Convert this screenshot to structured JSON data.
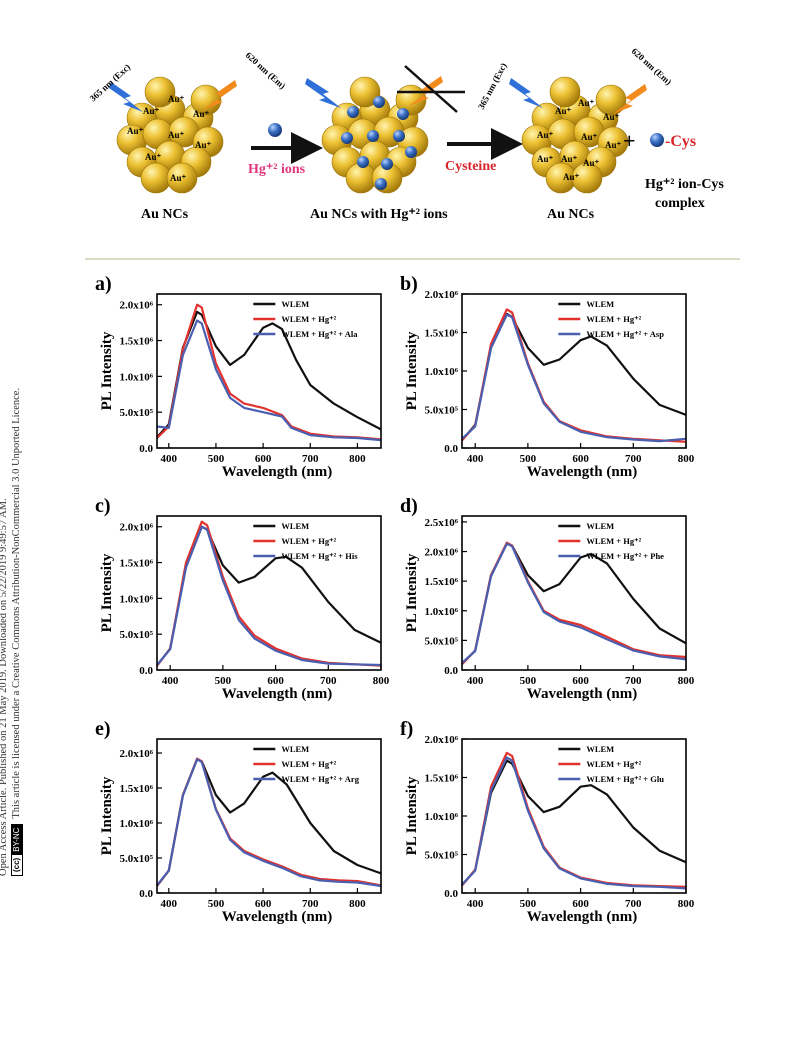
{
  "side_notice": {
    "line1": "Open Access Article. Published on 21 May 2019. Downloaded on 5/22/2019 9:49:57 AM.",
    "badge_cc": "(cc)",
    "badge_by": "BY-NC",
    "line2": "This article is licensed under a Creative Commons Attribution-NonCommercial 3.0 Unported Licence."
  },
  "scheme": {
    "exc_label": "365 nm (Exc)",
    "em_label": "620 nm (Em)",
    "au_plus": "Au⁺",
    "cluster1_label": "Au NCs",
    "hg_ions_label": "Hg⁺² ions",
    "cluster2_label": "Au NCs with Hg⁺² ions",
    "cysteine_label": "Cysteine",
    "cluster3_label": "Au NCs",
    "plus": "+",
    "cys_label": "-Cys",
    "complex_label_1": "Hg⁺² ion-Cys",
    "complex_label_2": "complex",
    "colors": {
      "gold": "#e7b622",
      "gold_dark": "#b0840e",
      "blue_bolt": "#2f6fd8",
      "orange_bolt": "#f28a1c",
      "hg_ball": "#2f5fa8",
      "pink": "#e0377e",
      "red_text": "#d8252a"
    }
  },
  "chart_data": [
    {
      "panel": "a)",
      "type": "line",
      "xlabel": "Wavelength (nm)",
      "ylabel": "PL Intensity",
      "xlim": [
        375,
        850
      ],
      "ylim": [
        0,
        2150000
      ],
      "xticks": [
        400,
        500,
        600,
        700,
        800
      ],
      "yticks": [
        0,
        500000,
        1000000,
        1500000,
        2000000
      ],
      "ytick_labels": [
        "0.0",
        "5.0x10⁵",
        "1.0x10⁶",
        "1.5x10⁶",
        "2.0x10⁶"
      ],
      "legend": "top-right",
      "series": [
        {
          "name": "WLEM",
          "color": "#111111",
          "x": [
            375,
            400,
            430,
            460,
            470,
            500,
            530,
            560,
            600,
            620,
            640,
            670,
            700,
            750,
            800,
            850
          ],
          "y": [
            150000,
            330000,
            1400000,
            1900000,
            1860000,
            1420000,
            1160000,
            1300000,
            1680000,
            1740000,
            1660000,
            1230000,
            880000,
            620000,
            430000,
            260000
          ]
        },
        {
          "name": "WLEM + Hg⁺²",
          "color": "#e2322d",
          "x": [
            375,
            400,
            430,
            460,
            470,
            500,
            530,
            560,
            600,
            640,
            660,
            700,
            750,
            800,
            850
          ],
          "y": [
            140000,
            300000,
            1380000,
            2000000,
            1960000,
            1180000,
            760000,
            620000,
            560000,
            460000,
            300000,
            200000,
            160000,
            150000,
            120000
          ]
        },
        {
          "name": "WLEM + Hg⁺² + Ala",
          "color": "#4a5fb0",
          "x": [
            375,
            400,
            430,
            460,
            470,
            500,
            530,
            560,
            600,
            640,
            660,
            700,
            750,
            800,
            850
          ],
          "y": [
            300000,
            280000,
            1300000,
            1780000,
            1740000,
            1100000,
            700000,
            560000,
            500000,
            440000,
            280000,
            180000,
            150000,
            140000,
            110000
          ]
        }
      ]
    },
    {
      "panel": "b)",
      "type": "line",
      "xlabel": "Wavelength (nm)",
      "ylabel": "PL Intensity",
      "xlim": [
        375,
        800
      ],
      "ylim": [
        0,
        2000000
      ],
      "xticks": [
        400,
        500,
        600,
        700,
        800
      ],
      "yticks": [
        0,
        500000,
        1000000,
        1500000,
        2000000
      ],
      "ytick_labels": [
        "0.0",
        "5.0x10⁵",
        "1.0x10⁶",
        "1.5x10⁶",
        "2.0x10⁶"
      ],
      "legend": "top-right",
      "series": [
        {
          "name": "WLEM",
          "color": "#111111",
          "x": [
            375,
            400,
            430,
            460,
            470,
            500,
            530,
            560,
            600,
            620,
            650,
            700,
            750,
            800
          ],
          "y": [
            100000,
            300000,
            1300000,
            1740000,
            1700000,
            1300000,
            1080000,
            1150000,
            1400000,
            1450000,
            1330000,
            900000,
            560000,
            430000
          ]
        },
        {
          "name": "WLEM + Hg⁺²",
          "color": "#e2322d",
          "x": [
            375,
            400,
            430,
            460,
            470,
            500,
            530,
            560,
            600,
            650,
            700,
            750,
            800
          ],
          "y": [
            100000,
            290000,
            1350000,
            1800000,
            1760000,
            1100000,
            600000,
            350000,
            230000,
            150000,
            120000,
            100000,
            80000
          ]
        },
        {
          "name": "WLEM + Hg⁺² + Asp",
          "color": "#4a5fb0",
          "x": [
            375,
            400,
            430,
            460,
            470,
            500,
            530,
            560,
            600,
            650,
            700,
            750,
            800
          ],
          "y": [
            120000,
            280000,
            1300000,
            1730000,
            1700000,
            1080000,
            580000,
            340000,
            210000,
            140000,
            110000,
            90000,
            120000
          ]
        }
      ]
    },
    {
      "panel": "c)",
      "type": "line",
      "xlabel": "Wavelength (nm)",
      "ylabel": "PL Intensity",
      "xlim": [
        375,
        800
      ],
      "ylim": [
        0,
        2150000
      ],
      "xticks": [
        400,
        500,
        600,
        700,
        800
      ],
      "yticks": [
        0,
        500000,
        1000000,
        1500000,
        2000000
      ],
      "ytick_labels": [
        "0.0",
        "5.0x10⁵",
        "1.0x10⁶",
        "1.5x10⁶",
        "2.0x10⁶"
      ],
      "legend": "top-right",
      "series": [
        {
          "name": "WLEM",
          "color": "#111111",
          "x": [
            375,
            400,
            430,
            460,
            470,
            500,
            530,
            560,
            600,
            620,
            650,
            700,
            750,
            800
          ],
          "y": [
            60000,
            300000,
            1450000,
            2000000,
            1960000,
            1460000,
            1220000,
            1300000,
            1560000,
            1580000,
            1430000,
            950000,
            560000,
            380000
          ]
        },
        {
          "name": "WLEM + Hg⁺²",
          "color": "#e2322d",
          "x": [
            375,
            400,
            430,
            460,
            470,
            500,
            530,
            560,
            600,
            650,
            700,
            750,
            800
          ],
          "y": [
            60000,
            300000,
            1500000,
            2070000,
            2020000,
            1300000,
            750000,
            480000,
            300000,
            160000,
            100000,
            80000,
            60000
          ]
        },
        {
          "name": "WLEM + Hg⁺² + His",
          "color": "#4a5fb0",
          "x": [
            375,
            400,
            430,
            460,
            470,
            500,
            530,
            560,
            600,
            650,
            700,
            750,
            800
          ],
          "y": [
            70000,
            290000,
            1430000,
            2000000,
            1960000,
            1250000,
            700000,
            440000,
            270000,
            140000,
            90000,
            80000,
            70000
          ]
        }
      ]
    },
    {
      "panel": "d)",
      "type": "line",
      "xlabel": "Wavelength (nm)",
      "ylabel": "PL Intensity",
      "xlim": [
        375,
        800
      ],
      "ylim": [
        0,
        2600000
      ],
      "xticks": [
        400,
        500,
        600,
        700,
        800
      ],
      "yticks": [
        0,
        500000,
        1000000,
        1500000,
        2000000,
        2500000
      ],
      "ytick_labels": [
        "0.0",
        "5.0x10⁵",
        "1.0x10⁶",
        "1.5x10⁶",
        "2.0x10⁶",
        "2.5x10⁶"
      ],
      "legend": "top-right",
      "series": [
        {
          "name": "WLEM",
          "color": "#111111",
          "x": [
            375,
            400,
            430,
            460,
            470,
            500,
            530,
            560,
            600,
            620,
            650,
            700,
            750,
            800
          ],
          "y": [
            100000,
            330000,
            1600000,
            2130000,
            2100000,
            1600000,
            1330000,
            1450000,
            1900000,
            1960000,
            1800000,
            1200000,
            700000,
            450000
          ]
        },
        {
          "name": "WLEM + Hg⁺²",
          "color": "#e2322d",
          "x": [
            375,
            400,
            430,
            460,
            470,
            500,
            530,
            560,
            600,
            650,
            700,
            750,
            800
          ],
          "y": [
            100000,
            330000,
            1600000,
            2150000,
            2100000,
            1500000,
            1000000,
            850000,
            760000,
            560000,
            350000,
            250000,
            220000
          ]
        },
        {
          "name": "WLEM + Hg⁺² + Phe",
          "color": "#4a5fb0",
          "x": [
            375,
            400,
            430,
            460,
            470,
            500,
            530,
            560,
            600,
            650,
            700,
            750,
            800
          ],
          "y": [
            120000,
            320000,
            1580000,
            2130000,
            2090000,
            1480000,
            980000,
            820000,
            720000,
            520000,
            330000,
            230000,
            180000
          ]
        }
      ]
    },
    {
      "panel": "e)",
      "type": "line",
      "xlabel": "Wavelength (nm)",
      "ylabel": "PL Intensity",
      "xlim": [
        375,
        850
      ],
      "ylim": [
        0,
        2200000
      ],
      "xticks": [
        400,
        500,
        600,
        700,
        800
      ],
      "yticks": [
        0,
        500000,
        1000000,
        1500000,
        2000000
      ],
      "ytick_labels": [
        "0.0",
        "5.0x10⁵",
        "1.0x10⁶",
        "1.5x10⁶",
        "2.0x10⁶"
      ],
      "legend": "top-right",
      "series": [
        {
          "name": "WLEM",
          "color": "#111111",
          "x": [
            375,
            400,
            430,
            460,
            470,
            500,
            530,
            560,
            600,
            620,
            650,
            700,
            750,
            800,
            850
          ],
          "y": [
            100000,
            320000,
            1400000,
            1910000,
            1880000,
            1400000,
            1150000,
            1280000,
            1660000,
            1720000,
            1550000,
            1000000,
            600000,
            400000,
            280000
          ]
        },
        {
          "name": "WLEM + Hg⁺²",
          "color": "#e2322d",
          "x": [
            375,
            400,
            430,
            460,
            470,
            500,
            530,
            560,
            600,
            640,
            680,
            720,
            760,
            800,
            850
          ],
          "y": [
            100000,
            320000,
            1400000,
            1920000,
            1880000,
            1200000,
            780000,
            600000,
            480000,
            380000,
            260000,
            200000,
            180000,
            170000,
            110000
          ]
        },
        {
          "name": "WLEM + Hg⁺² + Arg",
          "color": "#4a5fb0",
          "x": [
            375,
            400,
            430,
            460,
            470,
            500,
            530,
            560,
            600,
            640,
            680,
            720,
            760,
            800,
            850
          ],
          "y": [
            110000,
            320000,
            1390000,
            1910000,
            1870000,
            1190000,
            760000,
            580000,
            460000,
            360000,
            240000,
            180000,
            160000,
            150000,
            100000
          ]
        }
      ]
    },
    {
      "panel": "f)",
      "type": "line",
      "xlabel": "Wavelength (nm)",
      "ylabel": "PL Intensity",
      "xlim": [
        375,
        800
      ],
      "ylim": [
        0,
        2000000
      ],
      "xticks": [
        400,
        500,
        600,
        700,
        800
      ],
      "yticks": [
        0,
        500000,
        1000000,
        1500000,
        2000000
      ],
      "ytick_labels": [
        "0.0",
        "5.0x10⁵",
        "1.0x10⁶",
        "1.5x10⁶",
        "2.0x10⁶"
      ],
      "legend": "top-right",
      "series": [
        {
          "name": "WLEM",
          "color": "#111111",
          "x": [
            375,
            400,
            430,
            460,
            470,
            500,
            530,
            560,
            600,
            620,
            650,
            700,
            750,
            800
          ],
          "y": [
            100000,
            300000,
            1300000,
            1720000,
            1680000,
            1260000,
            1050000,
            1120000,
            1380000,
            1400000,
            1280000,
            850000,
            550000,
            400000
          ]
        },
        {
          "name": "WLEM + Hg⁺²",
          "color": "#e2322d",
          "x": [
            375,
            400,
            430,
            460,
            470,
            500,
            530,
            560,
            600,
            650,
            700,
            750,
            800
          ],
          "y": [
            100000,
            300000,
            1380000,
            1820000,
            1780000,
            1100000,
            600000,
            330000,
            200000,
            130000,
            100000,
            90000,
            80000
          ]
        },
        {
          "name": "WLEM + Hg⁺² + Glu",
          "color": "#4a5fb0",
          "x": [
            375,
            400,
            430,
            460,
            470,
            500,
            530,
            560,
            600,
            650,
            700,
            750,
            800
          ],
          "y": [
            110000,
            290000,
            1330000,
            1760000,
            1720000,
            1070000,
            580000,
            320000,
            190000,
            120000,
            90000,
            80000,
            60000
          ]
        }
      ]
    }
  ]
}
